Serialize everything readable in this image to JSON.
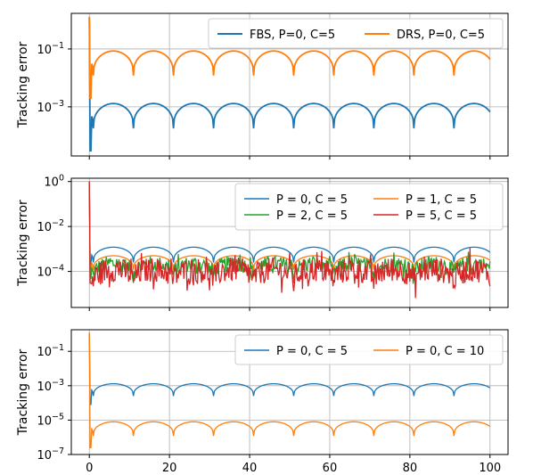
{
  "chart_data": [
    {
      "type": "line",
      "ylabel": "Tracking error",
      "yscale": "log",
      "ylim": [
        2e-05,
        1.7
      ],
      "xlim": [
        -4.5,
        104.5
      ],
      "grid": true,
      "legend": {
        "placement": "top-right",
        "ncol": 2
      },
      "yticks": [
        {
          "value": 0.1,
          "base": "10",
          "exp": "−1"
        },
        {
          "value": 0.001,
          "base": "10",
          "exp": "−3"
        }
      ],
      "series": [
        {
          "name": "FBS, P=0, C=5",
          "color": "#1f77b4",
          "base": 0.00055,
          "peak": 0.0013,
          "trough": 0.00018,
          "noise": 0,
          "start_peak": 1.2,
          "start_min": 3e-05
        },
        {
          "name": "DRS, P=0, C=5",
          "color": "#ff7f0e",
          "base": 0.035,
          "peak": 0.085,
          "trough": 0.012,
          "noise": 0,
          "start_peak": 1.3,
          "start_min": 0.002
        }
      ]
    },
    {
      "type": "line",
      "ylabel": "Tracking error",
      "yscale": "log",
      "ylim": [
        2.5e-06,
        1.4
      ],
      "xlim": [
        -4.5,
        104.5
      ],
      "grid": true,
      "legend": {
        "placement": "top-right",
        "ncol": 2
      },
      "yticks": [
        {
          "value": 1,
          "base": "10",
          "exp": "0"
        },
        {
          "value": 0.01,
          "base": "10",
          "exp": "−2"
        },
        {
          "value": 0.0001,
          "base": "10",
          "exp": "−4"
        }
      ],
      "series": [
        {
          "name": "P = 0, C = 5",
          "color": "#1f77b4",
          "base": 0.0005,
          "peak": 0.0012,
          "trough": 0.00025,
          "noise": 0,
          "start_peak": 1.0,
          "start_min": 0.0002
        },
        {
          "name": "P = 1, C = 5",
          "color": "#ff7f0e",
          "base": 0.00025,
          "peak": 0.0005,
          "trough": 0.00012,
          "noise": 0,
          "start_peak": 1.0,
          "start_min": 0.0001
        },
        {
          "name": "P = 2, C = 5",
          "color": "#2ca02c",
          "base": 0.00012,
          "peak": 0.00022,
          "trough": 6e-05,
          "noise": 0.35,
          "start_peak": 1.0,
          "start_min": 5e-05
        },
        {
          "name": "P = 5, C = 5",
          "color": "#d62728",
          "base": 7e-05,
          "peak": 0.00012,
          "trough": 3e-05,
          "noise": 0.55,
          "start_peak": 1.0,
          "start_min": 3e-05
        }
      ]
    },
    {
      "type": "line",
      "ylabel": "Tracking error",
      "yscale": "log",
      "ylim": [
        1e-07,
        1.8
      ],
      "xlim": [
        -4.5,
        104.5
      ],
      "grid": true,
      "legend": {
        "placement": "top-right",
        "ncol": 2
      },
      "xticks": [
        0,
        20,
        40,
        60,
        80,
        100
      ],
      "yticks": [
        {
          "value": 0.1,
          "base": "10",
          "exp": "−1"
        },
        {
          "value": 0.001,
          "base": "10",
          "exp": "−3"
        },
        {
          "value": 1e-05,
          "base": "10",
          "exp": "−5"
        },
        {
          "value": 1e-07,
          "base": "10",
          "exp": "−7"
        }
      ],
      "series": [
        {
          "name": "P = 0, C = 5",
          "color": "#1f77b4",
          "base": 0.0006,
          "peak": 0.0013,
          "trough": 0.00025,
          "noise": 0,
          "start_peak": 1.2,
          "start_min": 8e-05
        },
        {
          "name": "P = 0, C = 10",
          "color": "#ff7f0e",
          "base": 4e-06,
          "peak": 8e-06,
          "trough": 1.2e-06,
          "noise": 0,
          "start_peak": 1.2,
          "start_min": 2.5e-07
        }
      ]
    }
  ]
}
